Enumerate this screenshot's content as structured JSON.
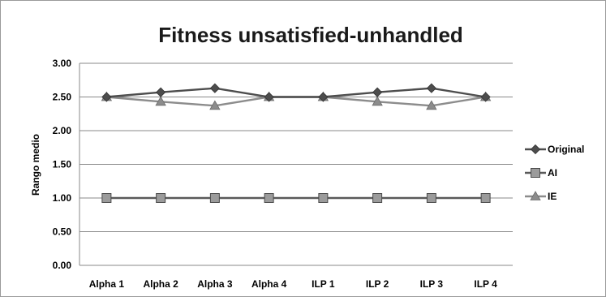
{
  "chart_data": {
    "type": "line",
    "title": "Fitness unsatisfied-unhandled",
    "xlabel": "",
    "ylabel": "Rango medio",
    "categories": [
      "Alpha 1",
      "Alpha 2",
      "Alpha 3",
      "Alpha 4",
      "ILP 1",
      "ILP 2",
      "ILP 3",
      "ILP 4"
    ],
    "ylim": [
      0,
      3
    ],
    "yticks": [
      "0.00",
      "0.50",
      "1.00",
      "1.50",
      "2.00",
      "2.50",
      "3.00"
    ],
    "grid": true,
    "legend_position": "right",
    "series": [
      {
        "name": "Original",
        "marker": "diamond",
        "color": "#4d4d4d",
        "values": [
          2.5,
          2.57,
          2.63,
          2.5,
          2.5,
          2.57,
          2.63,
          2.5
        ]
      },
      {
        "name": "AI",
        "marker": "square",
        "color": "#5a5a5a",
        "values": [
          1.0,
          1.0,
          1.0,
          1.0,
          1.0,
          1.0,
          1.0,
          1.0
        ]
      },
      {
        "name": "IE",
        "marker": "triangle",
        "color": "#8c8c8c",
        "values": [
          2.5,
          2.43,
          2.37,
          2.5,
          2.5,
          2.43,
          2.37,
          2.5
        ]
      }
    ]
  }
}
